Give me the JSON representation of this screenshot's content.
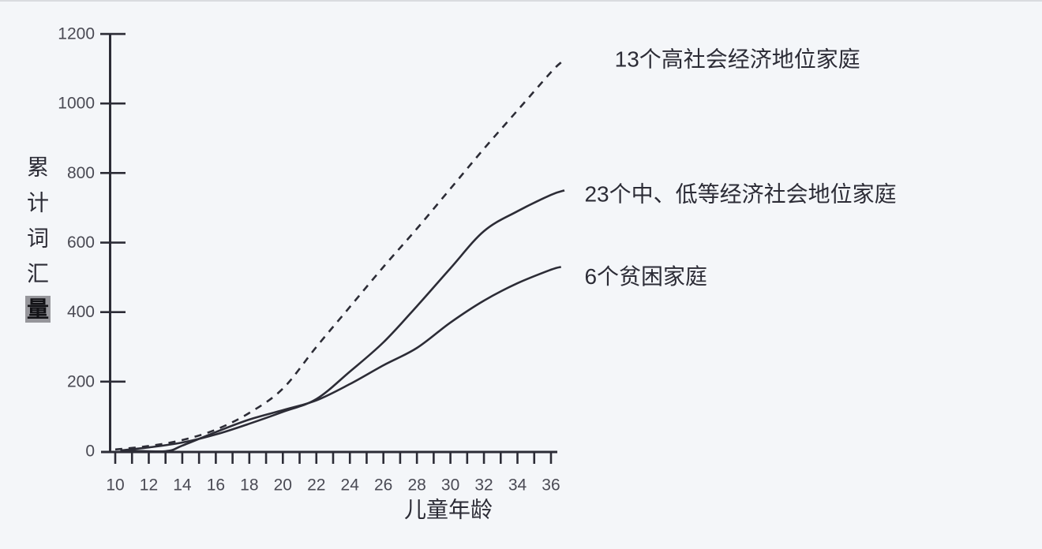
{
  "page": {
    "background": "#f4f6f9",
    "top_edge_color": "#d9dbdf",
    "ink_color": "#2c2c36",
    "tick_label_color": "#4a4a54",
    "highlight_box_color": "#96969b"
  },
  "chart_data": {
    "type": "line",
    "title": "",
    "xlabel": "儿童年龄",
    "ylabel": "累计词汇量",
    "ylabel_orientation": "vertical",
    "ylabel_highlight_char_index": 4,
    "xlim": [
      10,
      36.5
    ],
    "ylim": [
      0,
      1200
    ],
    "y_ticks": [
      0,
      200,
      400,
      600,
      800,
      1000,
      1200
    ],
    "x_ticks_labeled": [
      10,
      12,
      14,
      16,
      18,
      20,
      22,
      24,
      26,
      28,
      30,
      32,
      34,
      36
    ],
    "x_minor_tick_step": 1,
    "grid": false,
    "legend_position": "inline-annotations",
    "series": [
      {
        "id": "high-ses",
        "name": "13个高社会经济地位家庭",
        "line_style": "dashed",
        "points": [
          [
            10,
            5
          ],
          [
            12,
            15
          ],
          [
            14,
            32
          ],
          [
            16,
            62
          ],
          [
            18,
            110
          ],
          [
            20,
            180
          ],
          [
            22,
            300
          ],
          [
            24,
            415
          ],
          [
            26,
            530
          ],
          [
            28,
            640
          ],
          [
            30,
            755
          ],
          [
            32,
            870
          ],
          [
            34,
            980
          ],
          [
            36,
            1090
          ],
          [
            36.6,
            1118
          ]
        ],
        "label_anchor": {
          "x": 39.8,
          "y": 1128
        }
      },
      {
        "id": "mid-low-ses",
        "name": "23个中、低等经济社会地位家庭",
        "line_style": "solid",
        "points": [
          [
            10.3,
            2
          ],
          [
            12,
            11
          ],
          [
            14,
            25
          ],
          [
            16,
            48
          ],
          [
            18,
            79
          ],
          [
            20,
            113
          ],
          [
            22,
            150
          ],
          [
            24,
            229
          ],
          [
            26,
            313
          ],
          [
            28,
            417
          ],
          [
            30,
            526
          ],
          [
            32,
            633
          ],
          [
            34,
            690
          ],
          [
            36,
            737
          ],
          [
            36.8,
            750
          ]
        ],
        "label_anchor": {
          "x": 38.0,
          "y": 740
        }
      },
      {
        "id": "poverty",
        "name": "6个贫困家庭",
        "line_style": "solid",
        "points": [
          [
            10.6,
            2
          ],
          [
            13,
            0
          ],
          [
            14,
            16
          ],
          [
            16,
            55
          ],
          [
            18,
            91
          ],
          [
            20,
            118
          ],
          [
            22,
            146
          ],
          [
            24,
            193
          ],
          [
            26,
            247
          ],
          [
            28,
            297
          ],
          [
            30,
            370
          ],
          [
            32,
            433
          ],
          [
            34,
            483
          ],
          [
            36,
            522
          ],
          [
            36.6,
            530
          ]
        ],
        "label_anchor": {
          "x": 38.0,
          "y": 503
        }
      }
    ]
  }
}
